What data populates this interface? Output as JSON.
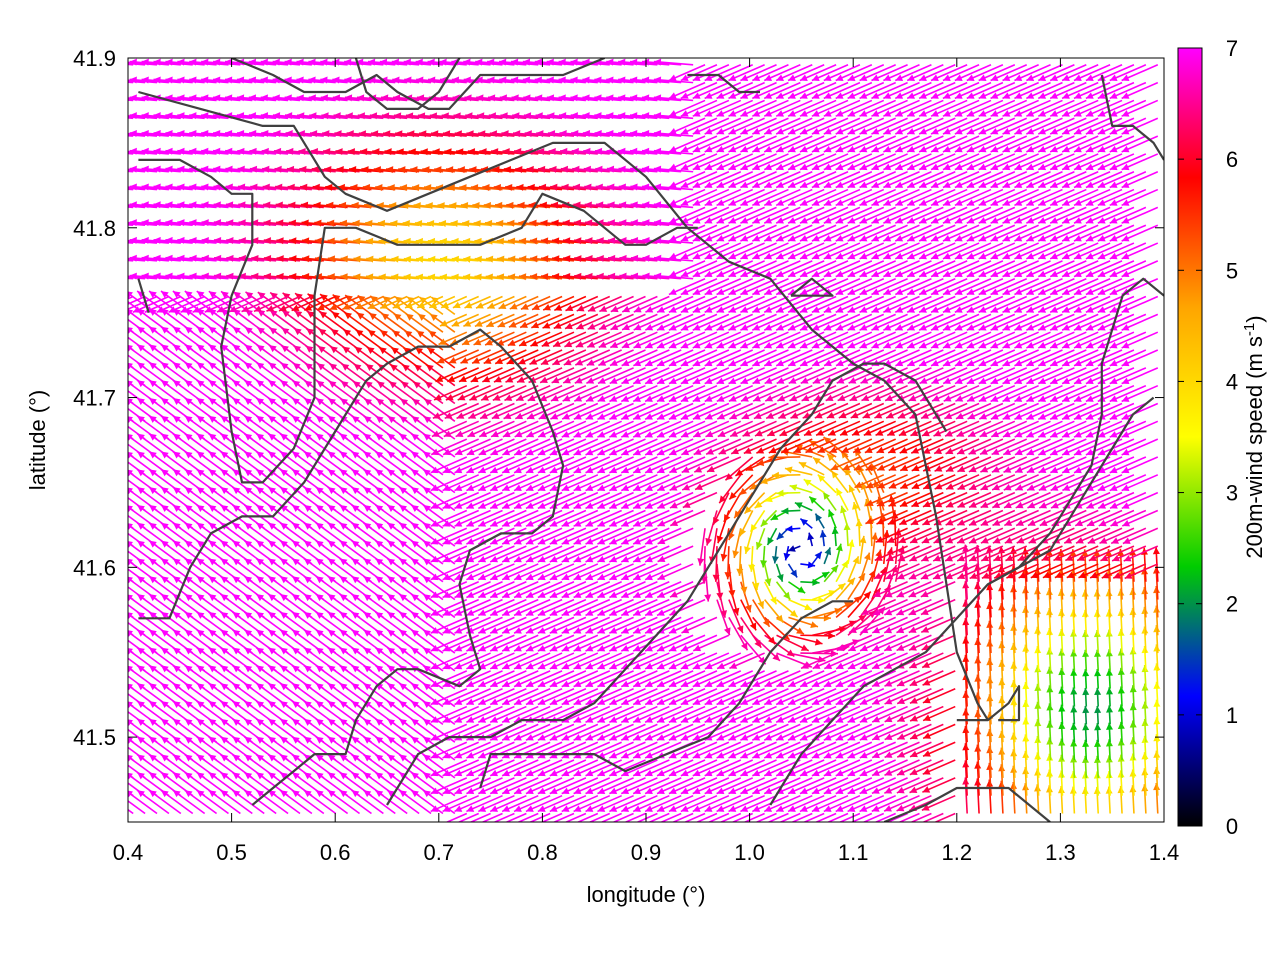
{
  "chart_data": {
    "type": "vector-field",
    "xlabel": "longitude (°)",
    "ylabel": "latitude (°)",
    "xlim": [
      0.4,
      1.4
    ],
    "ylim": [
      41.45,
      41.9
    ],
    "xticks": [
      "0.4",
      "0.5",
      "0.6",
      "0.7",
      "0.8",
      "0.9",
      "1.0",
      "1.1",
      "1.2",
      "1.3",
      "1.4"
    ],
    "xtick_values": [
      0.4,
      0.5,
      0.6,
      0.7,
      0.8,
      0.9,
      1.0,
      1.1,
      1.2,
      1.3,
      1.4
    ],
    "yticks": [
      "41.5",
      "41.6",
      "41.7",
      "41.8",
      "41.9"
    ],
    "ytick_values": [
      41.5,
      41.6,
      41.7,
      41.8,
      41.9
    ],
    "colorbar": {
      "label_main": "200m-wind speed (m s",
      "label_sup": "-1",
      "label_end": ")",
      "range": [
        0,
        7
      ],
      "ticks": [
        "0",
        "1",
        "2",
        "3",
        "4",
        "5",
        "6",
        "7"
      ],
      "tick_values": [
        0,
        1,
        2,
        3,
        4,
        5,
        6,
        7
      ],
      "palette": [
        "#000000",
        "#0000ff",
        "#00cc00",
        "#ffff00",
        "#ffa500",
        "#ff0000",
        "#ff00ff"
      ]
    },
    "grid": false,
    "contours": [
      [
        [
          0.41,
          41.88
        ],
        [
          0.47,
          41.87
        ],
        [
          0.53,
          41.86
        ],
        [
          0.56,
          41.86
        ],
        [
          0.59,
          41.83
        ],
        [
          0.61,
          41.82
        ],
        [
          0.65,
          41.81
        ],
        [
          0.69,
          41.82
        ],
        [
          0.73,
          41.83
        ],
        [
          0.77,
          41.84
        ],
        [
          0.81,
          41.85
        ],
        [
          0.86,
          41.85
        ],
        [
          0.9,
          41.83
        ],
        [
          0.94,
          41.8
        ],
        [
          0.98,
          41.78
        ],
        [
          1.02,
          41.77
        ],
        [
          1.06,
          41.74
        ],
        [
          1.1,
          41.72
        ],
        [
          1.13,
          41.71
        ],
        [
          1.16,
          41.69
        ],
        [
          1.18,
          41.63
        ],
        [
          1.2,
          41.55
        ],
        [
          1.22,
          41.52
        ],
        [
          1.23,
          41.51
        ]
      ],
      [
        [
          0.41,
          41.84
        ],
        [
          0.45,
          41.84
        ],
        [
          0.48,
          41.83
        ],
        [
          0.5,
          41.82
        ],
        [
          0.52,
          41.82
        ],
        [
          0.52,
          41.79
        ],
        [
          0.5,
          41.76
        ],
        [
          0.49,
          41.73
        ],
        [
          0.5,
          41.68
        ],
        [
          0.51,
          41.65
        ],
        [
          0.53,
          41.65
        ],
        [
          0.56,
          41.67
        ],
        [
          0.58,
          41.7
        ],
        [
          0.58,
          41.76
        ],
        [
          0.59,
          41.8
        ],
        [
          0.62,
          41.8
        ],
        [
          0.66,
          41.79
        ],
        [
          0.7,
          41.79
        ],
        [
          0.74,
          41.79
        ],
        [
          0.78,
          41.8
        ],
        [
          0.8,
          41.82
        ],
        [
          0.84,
          41.81
        ],
        [
          0.88,
          41.79
        ],
        [
          0.9,
          41.79
        ],
        [
          0.93,
          41.8
        ],
        [
          0.95,
          41.8
        ]
      ],
      [
        [
          0.5,
          41.9
        ],
        [
          0.54,
          41.89
        ],
        [
          0.57,
          41.88
        ],
        [
          0.61,
          41.88
        ],
        [
          0.64,
          41.89
        ],
        [
          0.66,
          41.88
        ],
        [
          0.69,
          41.87
        ],
        [
          0.71,
          41.87
        ],
        [
          0.74,
          41.89
        ],
        [
          0.78,
          41.89
        ],
        [
          0.82,
          41.89
        ],
        [
          0.86,
          41.9
        ]
      ],
      [
        [
          0.62,
          41.9
        ],
        [
          0.63,
          41.88
        ],
        [
          0.65,
          41.87
        ],
        [
          0.68,
          41.87
        ],
        [
          0.7,
          41.88
        ],
        [
          0.71,
          41.89
        ],
        [
          0.72,
          41.9
        ]
      ],
      [
        [
          0.41,
          41.57
        ],
        [
          0.44,
          41.57
        ],
        [
          0.46,
          41.6
        ],
        [
          0.48,
          41.62
        ],
        [
          0.51,
          41.63
        ],
        [
          0.54,
          41.63
        ],
        [
          0.57,
          41.65
        ],
        [
          0.6,
          41.68
        ],
        [
          0.63,
          41.71
        ],
        [
          0.65,
          41.72
        ],
        [
          0.68,
          41.73
        ],
        [
          0.71,
          41.73
        ],
        [
          0.74,
          41.74
        ],
        [
          0.76,
          41.73
        ],
        [
          0.79,
          41.71
        ],
        [
          0.81,
          41.68
        ],
        [
          0.82,
          41.66
        ],
        [
          0.81,
          41.63
        ],
        [
          0.79,
          41.62
        ],
        [
          0.76,
          41.62
        ],
        [
          0.73,
          41.61
        ],
        [
          0.72,
          41.59
        ],
        [
          0.73,
          41.56
        ],
        [
          0.74,
          41.54
        ],
        [
          0.72,
          41.53
        ],
        [
          0.68,
          41.54
        ],
        [
          0.66,
          41.54
        ],
        [
          0.64,
          41.53
        ],
        [
          0.62,
          41.51
        ],
        [
          0.61,
          41.49
        ],
        [
          0.58,
          41.49
        ],
        [
          0.56,
          41.48
        ],
        [
          0.54,
          41.47
        ],
        [
          0.52,
          41.46
        ]
      ],
      [
        [
          0.65,
          41.46
        ],
        [
          0.68,
          41.49
        ],
        [
          0.71,
          41.5
        ],
        [
          0.75,
          41.5
        ],
        [
          0.78,
          41.51
        ],
        [
          0.82,
          41.51
        ],
        [
          0.85,
          41.52
        ],
        [
          0.88,
          41.54
        ],
        [
          0.91,
          41.56
        ],
        [
          0.94,
          41.58
        ],
        [
          0.97,
          41.61
        ],
        [
          1.0,
          41.64
        ],
        [
          1.03,
          41.67
        ],
        [
          1.06,
          41.69
        ],
        [
          1.08,
          41.71
        ],
        [
          1.11,
          41.72
        ],
        [
          1.13,
          41.72
        ],
        [
          1.16,
          41.71
        ],
        [
          1.19,
          41.68
        ]
      ],
      [
        [
          0.74,
          41.47
        ],
        [
          0.75,
          41.49
        ],
        [
          0.79,
          41.49
        ],
        [
          0.82,
          41.49
        ],
        [
          0.85,
          41.49
        ],
        [
          0.88,
          41.48
        ],
        [
          0.92,
          41.49
        ],
        [
          0.96,
          41.5
        ],
        [
          0.99,
          41.52
        ],
        [
          1.02,
          41.55
        ],
        [
          1.05,
          41.57
        ],
        [
          1.08,
          41.58
        ],
        [
          1.1,
          41.58
        ]
      ],
      [
        [
          1.02,
          41.46
        ],
        [
          1.05,
          41.49
        ],
        [
          1.08,
          41.51
        ],
        [
          1.11,
          41.53
        ],
        [
          1.14,
          41.54
        ],
        [
          1.17,
          41.55
        ],
        [
          1.2,
          41.57
        ],
        [
          1.23,
          41.59
        ],
        [
          1.26,
          41.6
        ],
        [
          1.29,
          41.61
        ],
        [
          1.31,
          41.63
        ],
        [
          1.33,
          41.65
        ],
        [
          1.35,
          41.67
        ],
        [
          1.37,
          41.69
        ],
        [
          1.39,
          41.7
        ]
      ],
      [
        [
          1.13,
          41.45
        ],
        [
          1.17,
          41.46
        ],
        [
          1.2,
          41.47
        ],
        [
          1.23,
          41.47
        ],
        [
          1.25,
          41.47
        ],
        [
          1.27,
          41.46
        ],
        [
          1.29,
          41.45
        ]
      ],
      [
        [
          1.2,
          41.51
        ],
        [
          1.23,
          41.51
        ],
        [
          1.25,
          41.52
        ],
        [
          1.26,
          41.53
        ],
        [
          1.26,
          41.51
        ],
        [
          1.24,
          41.51
        ]
      ],
      [
        [
          1.23,
          41.59
        ],
        [
          1.26,
          41.6
        ],
        [
          1.29,
          41.62
        ],
        [
          1.31,
          41.64
        ],
        [
          1.33,
          41.66
        ],
        [
          1.34,
          41.69
        ],
        [
          1.34,
          41.72
        ],
        [
          1.35,
          41.74
        ],
        [
          1.36,
          41.76
        ],
        [
          1.38,
          41.77
        ],
        [
          1.4,
          41.76
        ]
      ],
      [
        [
          1.34,
          41.89
        ],
        [
          1.35,
          41.86
        ],
        [
          1.37,
          41.86
        ],
        [
          1.39,
          41.85
        ],
        [
          1.4,
          41.84
        ]
      ],
      [
        [
          1.04,
          41.76
        ],
        [
          1.06,
          41.76
        ],
        [
          1.08,
          41.76
        ],
        [
          1.06,
          41.77
        ],
        [
          1.04,
          41.76
        ]
      ],
      [
        [
          0.94,
          41.89
        ],
        [
          0.97,
          41.89
        ],
        [
          0.99,
          41.88
        ],
        [
          1.01,
          41.88
        ]
      ],
      [
        [
          0.41,
          41.77
        ],
        [
          0.42,
          41.75
        ]
      ]
    ]
  }
}
